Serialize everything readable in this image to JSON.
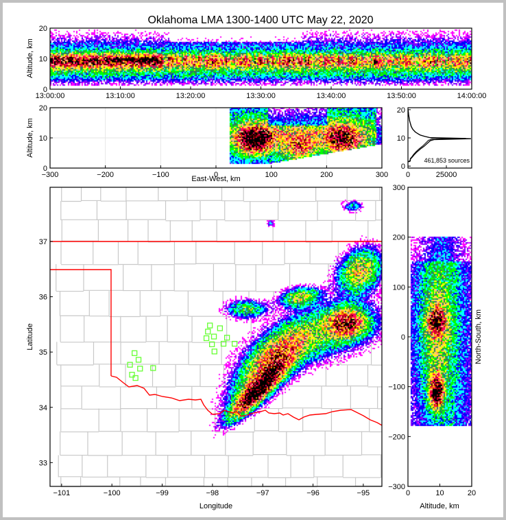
{
  "title": "Oklahoma LMA 1300-1400 UTC May 22, 2020",
  "colors": {
    "state_border": "#ff0000",
    "county_border": "#c8c8c8",
    "station": "#66ff33",
    "colormap": [
      "#ff00ff",
      "#8000ff",
      "#0000ff",
      "#00ffff",
      "#00ff00",
      "#2e7d60",
      "#ffff00",
      "#ffc080",
      "#ff9a00",
      "#ff0060",
      "#d00020",
      "#700000",
      "#000000"
    ]
  },
  "chart_data": [
    {
      "type": "heatmap",
      "name": "time-height",
      "ylabel": "Altitude, km",
      "xlabel": "",
      "xlim": [
        0,
        60
      ],
      "ylim": [
        0,
        20
      ],
      "xtick_values": [
        0,
        10,
        20,
        30,
        40,
        50,
        60
      ],
      "xticks": [
        "13:00:00",
        "13:10:00",
        "13:20:00",
        "13:30:00",
        "13:40:00",
        "13:50:00",
        "14:00:00"
      ],
      "ytick_values": [
        0,
        10,
        20
      ],
      "yticks": [
        "0",
        "10",
        "20"
      ]
    },
    {
      "type": "heatmap",
      "name": "east-west-altitude",
      "xlabel": "East-West, km",
      "ylabel": "Altitude, km",
      "xlim": [
        -300,
        300
      ],
      "ylim": [
        0,
        20
      ],
      "xtick_values": [
        -300,
        -200,
        -100,
        0,
        100,
        200,
        300
      ],
      "xticks": [
        "−300",
        "−200",
        "−100",
        "0",
        "100",
        "200",
        "300"
      ],
      "ytick_values": [
        0,
        10,
        20
      ],
      "yticks": [
        "0",
        "10",
        "20"
      ],
      "cells": [
        {
          "x": 70,
          "alt": 9.5,
          "sx": 30,
          "sa": 4,
          "amp": 1.2
        },
        {
          "x": 230,
          "alt": 9.5,
          "sx": 28,
          "sa": 4,
          "amp": 0.75
        },
        {
          "x": 150,
          "alt": 7,
          "sx": 25,
          "sa": 4,
          "amp": 0.45
        },
        {
          "x": 170,
          "alt": 11,
          "sx": 140,
          "sa": 7,
          "amp": 0.3
        }
      ]
    },
    {
      "type": "line",
      "name": "altitude-histogram",
      "xlim": [
        0,
        41500
      ],
      "ylim": [
        -0.7,
        20.7
      ],
      "xtick_values": [
        0,
        25000
      ],
      "xticks": [
        "0",
        "25000"
      ],
      "ytick_values": [
        0,
        10,
        20
      ],
      "yticks": [
        "0",
        "10",
        "20"
      ],
      "annotation": "461,853 sources",
      "altitude": [
        1.5,
        1.8,
        2.5,
        3,
        4,
        5,
        6,
        7,
        8,
        9,
        9.4,
        9.7,
        10,
        10.5,
        11,
        12,
        13,
        14,
        16,
        18,
        20
      ],
      "counts": [
        300,
        1500,
        1600,
        2500,
        4000,
        5800,
        8000,
        10500,
        12500,
        14500,
        17000,
        41000,
        15000,
        11000,
        8000,
        5000,
        3200,
        2200,
        1100,
        500,
        100
      ]
    },
    {
      "type": "heatmap",
      "name": "plan-view-map",
      "xlabel": "Longitude",
      "ylabel": "Latitude",
      "xlim": [
        -101.23,
        -94.63
      ],
      "ylim": [
        32.57,
        37.98
      ],
      "xtick_values": [
        -101,
        -100,
        -99,
        -98,
        -97,
        -96,
        -95
      ],
      "xticks": [
        "−101",
        "−100",
        "−99",
        "−98",
        "−97",
        "−96",
        "−95"
      ],
      "ytick_values": [
        33,
        34,
        35,
        36,
        37
      ],
      "yticks": [
        "33",
        "34",
        "35",
        "36",
        "37"
      ],
      "cells": [
        {
          "lon": -97.11,
          "lat": 34.29,
          "su": 0.55,
          "sw": 0.14,
          "angle": 48,
          "amp": 1.25
        },
        {
          "lon": -96.84,
          "lat": 34.79,
          "su": 0.8,
          "sw": 0.3,
          "angle": 50,
          "amp": 0.7
        },
        {
          "lon": -95.34,
          "lat": 35.53,
          "su": 0.3,
          "sw": 0.25,
          "angle": 0,
          "amp": 0.85
        },
        {
          "lon": -95.06,
          "lat": 36.46,
          "su": 0.4,
          "sw": 0.3,
          "angle": 60,
          "amp": 0.6
        },
        {
          "lon": -96.25,
          "lat": 35.99,
          "su": 0.3,
          "sw": 0.15,
          "angle": 10,
          "amp": 0.55
        },
        {
          "lon": -95.88,
          "lat": 35.28,
          "su": 1.0,
          "sw": 0.4,
          "angle": 20,
          "amp": 0.35
        },
        {
          "lon": -97.32,
          "lat": 35.78,
          "su": 0.3,
          "sw": 0.15,
          "angle": 0,
          "amp": 0.4
        },
        {
          "lon": -96.84,
          "lat": 37.33,
          "su": 0.06,
          "sw": 0.06,
          "angle": 0,
          "amp": 0.2
        },
        {
          "lon": -95.2,
          "lat": 37.64,
          "su": 0.15,
          "sw": 0.1,
          "angle": 0,
          "amp": 0.25
        }
      ],
      "stations": [
        {
          "lon": -98.05,
          "lat": 35.48
        },
        {
          "lon": -97.85,
          "lat": 35.43
        },
        {
          "lon": -98.09,
          "lat": 35.37
        },
        {
          "lon": -97.97,
          "lat": 35.28
        },
        {
          "lon": -97.71,
          "lat": 35.26
        },
        {
          "lon": -98.12,
          "lat": 35.25
        },
        {
          "lon": -98.01,
          "lat": 35.14
        },
        {
          "lon": -97.78,
          "lat": 35.15
        },
        {
          "lon": -97.56,
          "lat": 35.15
        },
        {
          "lon": -97.96,
          "lat": 35.01
        },
        {
          "lon": -99.55,
          "lat": 34.98
        },
        {
          "lon": -99.47,
          "lat": 34.86
        },
        {
          "lon": -99.64,
          "lat": 34.77
        },
        {
          "lon": -99.44,
          "lat": 34.7
        },
        {
          "lon": -99.18,
          "lat": 34.71
        },
        {
          "lon": -99.6,
          "lat": 34.59
        },
        {
          "lon": -99.53,
          "lat": 34.53
        }
      ]
    },
    {
      "type": "heatmap",
      "name": "north-south-altitude",
      "xlabel": "Altitude, km",
      "ylabel": "North-South, km",
      "xlim": [
        0,
        20
      ],
      "ylim": [
        -300,
        300
      ],
      "xtick_values": [
        0,
        10,
        20
      ],
      "xticks": [
        "0",
        "10",
        "20"
      ],
      "ytick_values": [
        -300,
        -200,
        -100,
        0,
        100,
        200,
        300
      ],
      "yticks": [
        "−300",
        "−200",
        "−100",
        "0",
        "100",
        "200",
        "300"
      ],
      "cells": [
        {
          "alt": 9,
          "ns": -110,
          "sa": 2,
          "sn": 30,
          "amp": 1.15
        },
        {
          "alt": 9,
          "ns": 30,
          "sa": 2.5,
          "sn": 25,
          "amp": 0.7
        },
        {
          "alt": 9,
          "ns": 20,
          "sa": 5,
          "sn": 130,
          "amp": 0.35
        }
      ]
    }
  ]
}
